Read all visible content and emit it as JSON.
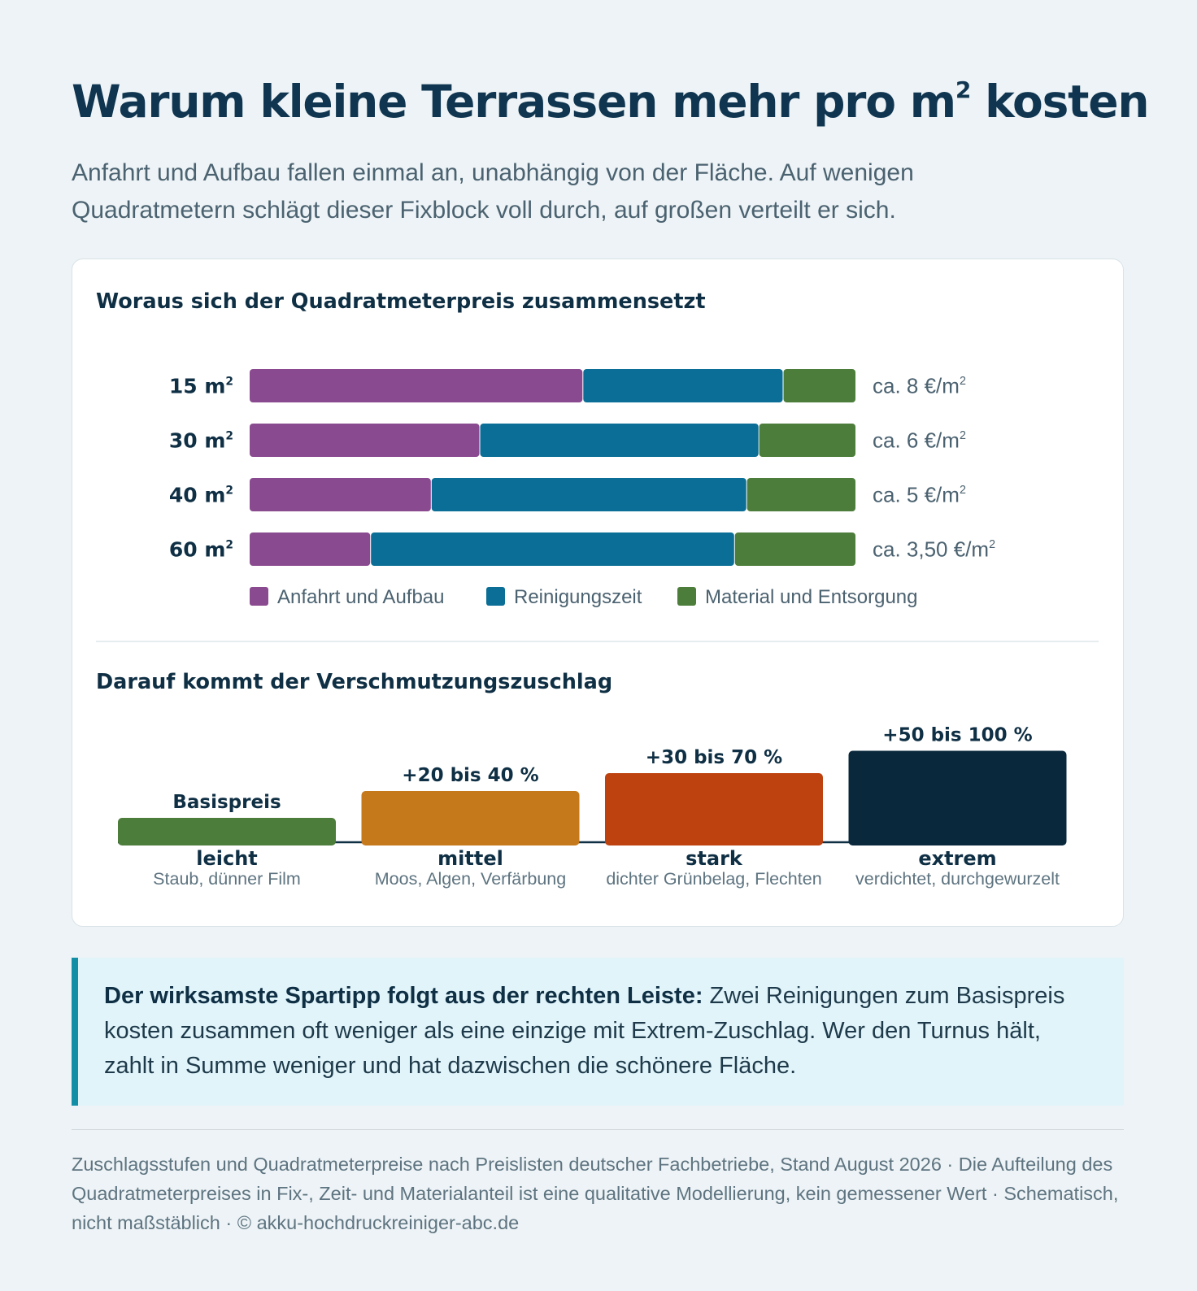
{
  "header": {
    "title": "Warum kleine Terrassen mehr pro m² kosten",
    "subtitle": "Anfahrt und Aufbau fallen einmal an, unabhängig von der Fläche. Auf wenigen Quadratmetern schlägt dieser Fixblock voll durch, auf großen verteilt er sich."
  },
  "chart_data": [
    {
      "type": "bar",
      "orientation": "horizontal",
      "stacked": true,
      "title": "Woraus sich der Quadratmeterpreis zusammensetzt",
      "categories": [
        "15 m²",
        "30 m²",
        "40 m²",
        "60 m²"
      ],
      "series": [
        {
          "name": "Anfahrt und Aufbau",
          "color": "#8a4a8f",
          "values": [
            55,
            38,
            30,
            20
          ]
        },
        {
          "name": "Reinigungszeit",
          "color": "#0a6e96",
          "values": [
            33,
            46,
            52,
            60
          ]
        },
        {
          "name": "Material und Entsorgung",
          "color": "#4c7d3a",
          "values": [
            12,
            16,
            18,
            20
          ]
        }
      ],
      "value_labels": [
        "ca. 8 €/m²",
        "ca. 6 €/m²",
        "ca. 5 €/m²",
        "ca. 3,50 €/m²"
      ],
      "value_unit": "share in %",
      "xlim": [
        0,
        100
      ],
      "legend": "bottom"
    },
    {
      "type": "bar",
      "title": "Darauf kommt der Verschmutzungszuschlag",
      "categories": [
        "leicht",
        "mittel",
        "stark",
        "extrem"
      ],
      "descriptions": [
        "Staub, dünner Film",
        "Moos, Algen, Verfärbung",
        "dichter Grünbelag, Flechten",
        "verdichtet, durchgewurzelt"
      ],
      "value_labels": [
        "Basispreis",
        "+20 bis 40 %",
        "+30 bis 70 %",
        "+50 bis 100 %"
      ],
      "values": [
        0,
        30,
        50,
        75
      ],
      "colors": [
        "#4c7d3a",
        "#c6791b",
        "#bd420f",
        "#0a283c"
      ],
      "schematic": true
    }
  ],
  "tip": {
    "lead": "Der wirksamste Spartipp folgt aus der rechten Leiste:",
    "text": " Zwei Reinigungen zum Basispreis kosten zusammen oft weniger als eine einzige mit Extrem-Zuschlag. Wer den Turnus hält, zahlt in Summe weniger und hat dazwischen die schönere Fläche."
  },
  "footer": {
    "text": "Zuschlagsstufen und Quadratmeterpreise nach Preislisten deutscher Fachbetriebe, Stand August 2026 · Die Aufteilung des Quadratmeterpreises in Fix-, Zeit- und Materialanteil ist eine qualitative Modellierung, kein gemessener Wert · Schematisch, nicht maßstäblich · © akku-hochdruckreiniger-abc.de"
  }
}
